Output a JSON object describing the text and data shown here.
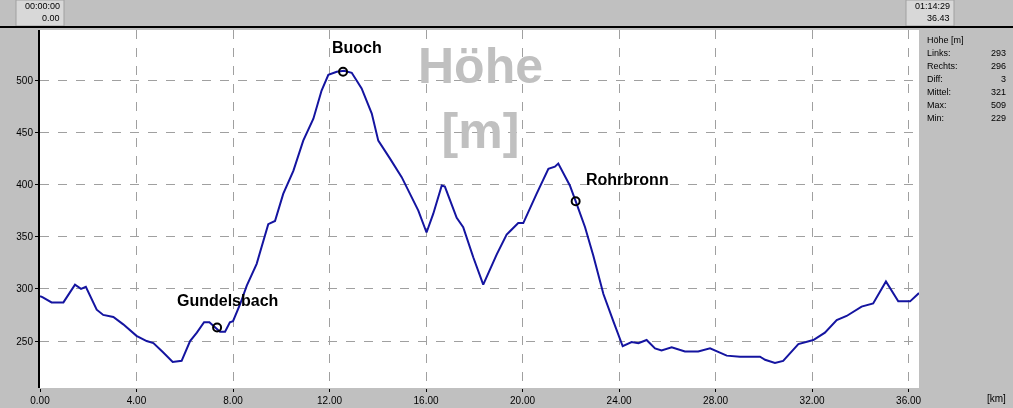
{
  "chart_data": {
    "type": "line",
    "title": "Höhe [m]",
    "x": [
      0,
      0.1,
      0.48,
      0.97,
      1.45,
      1.7,
      1.9,
      2.35,
      2.62,
      3.04,
      3.45,
      4.0,
      4.42,
      4.7,
      5.11,
      5.5,
      5.87,
      6.22,
      6.5,
      6.8,
      7.02,
      7.46,
      7.67,
      7.87,
      8.0,
      8.29,
      8.57,
      8.98,
      9.46,
      9.74,
      10.08,
      10.5,
      10.91,
      11.33,
      11.67,
      11.95,
      12.3,
      12.6,
      12.92,
      13.33,
      13.75,
      14.02,
      14.5,
      14.99,
      15.68,
      16.02,
      16.3,
      16.65,
      16.78,
      17.27,
      17.54,
      17.96,
      18.37,
      18.93,
      19.34,
      19.82,
      20.03,
      20.58,
      21.07,
      21.34,
      21.48,
      21.96,
      22.2,
      22.59,
      22.93,
      23.35,
      23.76,
      24.15,
      24.52,
      24.8,
      25.14,
      25.49,
      25.76,
      26.18,
      26.73,
      27.28,
      27.77,
      28.46,
      29.01,
      29.84,
      30.05,
      30.46,
      30.8,
      31.43,
      32.05,
      32.53,
      33.02,
      33.43,
      34.05,
      34.53,
      35.06,
      35.57,
      36.06,
      36.43
    ],
    "series": [
      {
        "color": "#1414a0",
        "values": [
          293,
          292,
          287,
          287,
          304,
          300,
          302,
          280,
          275,
          273,
          266,
          255,
          250,
          248,
          239,
          230,
          231,
          250,
          258,
          268,
          268,
          259,
          259,
          268,
          269,
          285,
          303,
          324,
          362,
          365,
          391,
          413,
          442,
          463,
          490,
          505,
          508,
          509,
          507,
          492,
          468,
          442,
          425,
          407,
          375,
          354,
          372,
          399,
          398,
          368,
          359,
          330,
          304,
          333,
          352,
          363,
          363,
          391,
          415,
          417,
          420,
          399,
          384,
          359,
          332,
          295,
          269,
          245,
          249,
          248,
          251,
          243,
          241,
          244,
          240,
          240,
          243,
          236,
          235,
          235,
          232,
          229,
          231,
          247,
          251,
          258,
          270,
          274,
          283,
          286,
          307,
          288,
          288,
          296
        ]
      }
    ],
    "xlim": [
      0,
      36.43
    ],
    "ylim": [
      205,
      548
    ],
    "xticks": [
      {
        "value": 0,
        "label": "0.00"
      },
      {
        "value": 4,
        "label": "4.00"
      },
      {
        "value": 8,
        "label": "8.00"
      },
      {
        "value": 12,
        "label": "12.00"
      },
      {
        "value": 16,
        "label": "16.00"
      },
      {
        "value": 20,
        "label": "20.00"
      },
      {
        "value": 24,
        "label": "24.00"
      },
      {
        "value": 28,
        "label": "28.00"
      },
      {
        "value": 32,
        "label": "32.00"
      },
      {
        "value": 36,
        "label": "36.00"
      }
    ],
    "yticks": [
      250,
      300,
      350,
      400,
      450,
      500
    ],
    "grid": true,
    "marker": "none",
    "line_style": "solid",
    "annotations": [
      {
        "text": "Gundelsbach",
        "x": 7.34,
        "y": 263
      },
      {
        "text": "Buoch",
        "x": 12.56,
        "y": 508
      },
      {
        "text": "Rohrbronn",
        "x": 22.2,
        "y": 384
      },
      "00:00:00",
      "0.00",
      "01:14:29",
      "36.43",
      "[km]",
      "Höhe [m]",
      "Links:",
      "293",
      "Rechts:",
      "296",
      "Diff:",
      "3",
      "Mittel:",
      "321",
      "Max:",
      "509",
      "Min:",
      "229"
    ]
  }
}
